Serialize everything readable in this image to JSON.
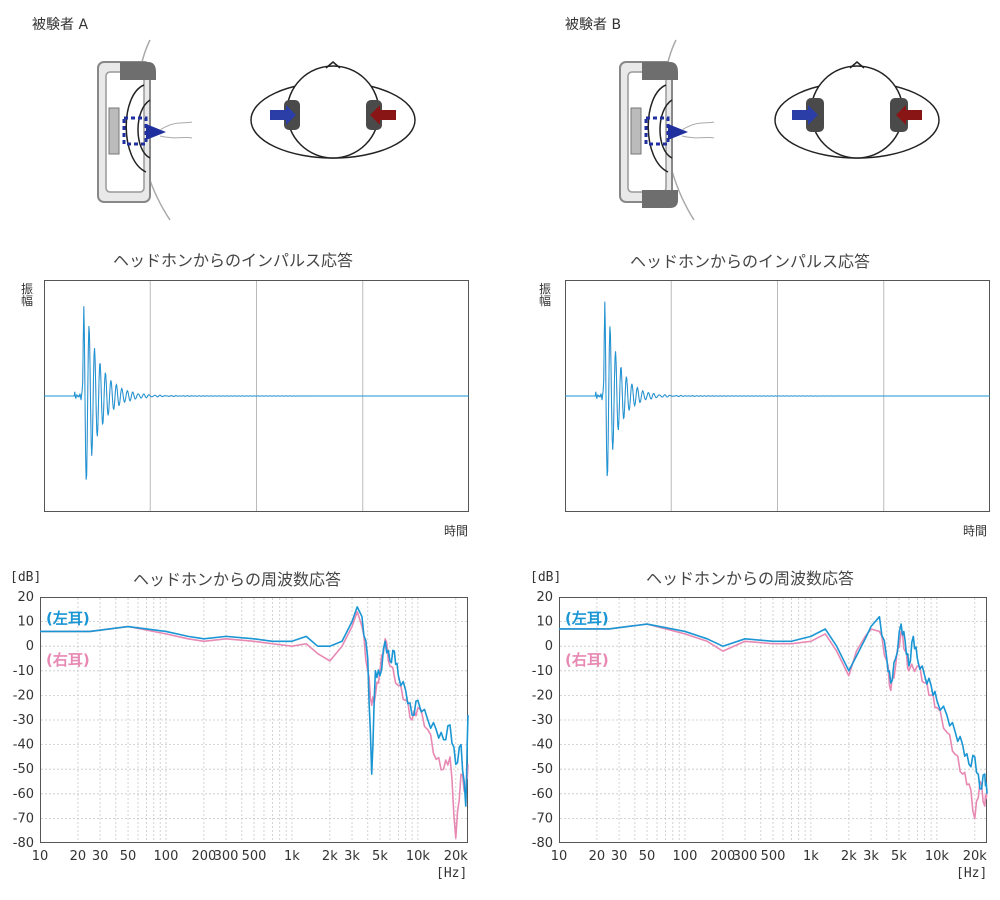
{
  "subjects": [
    {
      "label": "被験者 A",
      "impulse": {
        "title": "ヘッドホンからのインパルス応答",
        "ylabel": "振幅",
        "xlabel": "時間"
      },
      "freq": {
        "title": "ヘッドホンからの周波数応答"
      }
    },
    {
      "label": "被験者 B",
      "impulse": {
        "title": "ヘッドホンからのインパルス応答",
        "ylabel": "振幅",
        "xlabel": "時間"
      },
      "freq": {
        "title": "ヘッドホンからの周波数応答"
      }
    }
  ],
  "colors": {
    "left_ear": "#1a96d4",
    "right_ear": "#e889b4",
    "grid": "#c8c8c8",
    "arrow_blue": "#2b3ea8",
    "arrow_red": "#8a1515"
  },
  "chart_data": [
    {
      "type": "line",
      "title": "ヘッドホンからのインパルス応答",
      "ylabel": "振幅",
      "xlabel": "時間",
      "series": [
        {
          "name": "",
          "envelope": {
            "onset": 0.09,
            "peak_pos": 0.98,
            "peak_neg": -1.0,
            "decay": 0.035
          }
        }
      ]
    },
    {
      "type": "line",
      "title": "ヘッドホンからの周波数応答",
      "yunit": "[dB]",
      "xunit": "[Hz]",
      "xscale": "log",
      "xlim": [
        10,
        25000
      ],
      "ylim": [
        -80,
        20
      ],
      "xticks": [
        10,
        20,
        30,
        50,
        100,
        200,
        300,
        500,
        1000,
        2000,
        3000,
        5000,
        10000,
        20000
      ],
      "xticklabels": [
        "10",
        "20",
        "30",
        "50",
        "100",
        "200",
        "300",
        "500",
        "1k",
        "2k",
        "3k",
        "5k",
        "10k",
        "20k"
      ],
      "yticks": [
        20,
        10,
        0,
        -10,
        -20,
        -30,
        -40,
        -50,
        -60,
        -70,
        -80
      ],
      "yticklabels": [
        "20",
        "10",
        "0",
        "-10",
        "-20",
        "-30",
        "-40",
        "-50",
        "-60",
        "-70",
        "-80"
      ],
      "grid": true,
      "series": [
        {
          "name": "(左耳)",
          "color": "#1a96d4",
          "points": [
            [
              10,
              6
            ],
            [
              25,
              6
            ],
            [
              50,
              8
            ],
            [
              100,
              6
            ],
            [
              150,
              4
            ],
            [
              200,
              3
            ],
            [
              300,
              4
            ],
            [
              500,
              3
            ],
            [
              700,
              2
            ],
            [
              1000,
              2
            ],
            [
              1300,
              4
            ],
            [
              1600,
              0
            ],
            [
              2000,
              0
            ],
            [
              2500,
              2
            ],
            [
              3000,
              10
            ],
            [
              3300,
              16
            ],
            [
              3600,
              12
            ],
            [
              4000,
              -5
            ],
            [
              4300,
              -52
            ],
            [
              4600,
              -10
            ],
            [
              5000,
              -12
            ],
            [
              5500,
              2
            ],
            [
              6000,
              -6
            ],
            [
              6500,
              -2
            ],
            [
              7000,
              -12
            ],
            [
              8000,
              -18
            ],
            [
              9000,
              -28
            ],
            [
              10000,
              -22
            ],
            [
              12000,
              -30
            ],
            [
              14000,
              -34
            ],
            [
              16000,
              -38
            ],
            [
              18000,
              -32
            ],
            [
              20000,
              -48
            ],
            [
              22000,
              -40
            ],
            [
              24000,
              -65
            ],
            [
              25000,
              -28
            ]
          ]
        },
        {
          "name": "(右耳)",
          "color": "#e889b4",
          "points": [
            [
              10,
              6
            ],
            [
              25,
              6
            ],
            [
              50,
              8
            ],
            [
              100,
              5
            ],
            [
              150,
              3
            ],
            [
              200,
              2
            ],
            [
              300,
              3
            ],
            [
              500,
              2
            ],
            [
              700,
              1
            ],
            [
              1000,
              0
            ],
            [
              1300,
              1
            ],
            [
              1600,
              -3
            ],
            [
              2000,
              -6
            ],
            [
              2500,
              0
            ],
            [
              3000,
              8
            ],
            [
              3300,
              14
            ],
            [
              3600,
              8
            ],
            [
              4000,
              -10
            ],
            [
              4300,
              -24
            ],
            [
              4600,
              -20
            ],
            [
              5000,
              -10
            ],
            [
              5500,
              3
            ],
            [
              6000,
              -8
            ],
            [
              7000,
              -16
            ],
            [
              8000,
              -22
            ],
            [
              9000,
              -30
            ],
            [
              10000,
              -25
            ],
            [
              12000,
              -34
            ],
            [
              14000,
              -46
            ],
            [
              16000,
              -50
            ],
            [
              18000,
              -45
            ],
            [
              20000,
              -78
            ],
            [
              22000,
              -52
            ],
            [
              24000,
              -60
            ],
            [
              25000,
              -48
            ]
          ]
        }
      ]
    },
    {
      "type": "line",
      "title": "ヘッドホンからのインパルス応答",
      "ylabel": "振幅",
      "xlabel": "時間",
      "series": [
        {
          "name": "",
          "envelope": {
            "onset": 0.09,
            "peak_pos": 1.05,
            "peak_neg": -1.0,
            "decay": 0.03
          }
        }
      ]
    },
    {
      "type": "line",
      "title": "ヘッドホンからの周波数応答",
      "yunit": "[dB]",
      "xunit": "[Hz]",
      "xscale": "log",
      "xlim": [
        10,
        25000
      ],
      "ylim": [
        -80,
        20
      ],
      "xticks": [
        10,
        20,
        30,
        50,
        100,
        200,
        300,
        500,
        1000,
        2000,
        3000,
        5000,
        10000,
        20000
      ],
      "xticklabels": [
        "10",
        "20",
        "30",
        "50",
        "100",
        "200",
        "300",
        "500",
        "1k",
        "2k",
        "3k",
        "5k",
        "10k",
        "20k"
      ],
      "yticks": [
        20,
        10,
        0,
        -10,
        -20,
        -30,
        -40,
        -50,
        -60,
        -70,
        -80
      ],
      "yticklabels": [
        "20",
        "10",
        "0",
        "-10",
        "-20",
        "-30",
        "-40",
        "-50",
        "-60",
        "-70",
        "-80"
      ],
      "grid": true,
      "series": [
        {
          "name": "(左耳)",
          "color": "#1a96d4",
          "points": [
            [
              10,
              7
            ],
            [
              25,
              7
            ],
            [
              50,
              9
            ],
            [
              100,
              6
            ],
            [
              150,
              3
            ],
            [
              200,
              0
            ],
            [
              300,
              3
            ],
            [
              500,
              2
            ],
            [
              700,
              2
            ],
            [
              1000,
              4
            ],
            [
              1300,
              7
            ],
            [
              1600,
              0
            ],
            [
              2000,
              -10
            ],
            [
              2300,
              -4
            ],
            [
              2700,
              3
            ],
            [
              3000,
              8
            ],
            [
              3500,
              12
            ],
            [
              4000,
              -5
            ],
            [
              4300,
              -15
            ],
            [
              4700,
              -5
            ],
            [
              5200,
              9
            ],
            [
              5600,
              2
            ],
            [
              6000,
              -8
            ],
            [
              6500,
              4
            ],
            [
              7000,
              -5
            ],
            [
              8000,
              -12
            ],
            [
              9000,
              -16
            ],
            [
              10000,
              -22
            ],
            [
              12000,
              -28
            ],
            [
              14000,
              -35
            ],
            [
              16000,
              -40
            ],
            [
              18000,
              -48
            ],
            [
              20000,
              -45
            ],
            [
              22000,
              -58
            ],
            [
              24000,
              -52
            ],
            [
              25000,
              -60
            ]
          ]
        },
        {
          "name": "(右耳)",
          "color": "#e889b4",
          "points": [
            [
              10,
              7
            ],
            [
              25,
              7
            ],
            [
              50,
              9
            ],
            [
              100,
              5
            ],
            [
              150,
              2
            ],
            [
              200,
              -2
            ],
            [
              300,
              2
            ],
            [
              500,
              1
            ],
            [
              700,
              1
            ],
            [
              1000,
              2
            ],
            [
              1300,
              5
            ],
            [
              1600,
              -2
            ],
            [
              2000,
              -12
            ],
            [
              2300,
              -2
            ],
            [
              2700,
              4
            ],
            [
              3000,
              7
            ],
            [
              3500,
              6
            ],
            [
              4000,
              -6
            ],
            [
              4300,
              -18
            ],
            [
              4700,
              -8
            ],
            [
              5200,
              6
            ],
            [
              5600,
              -2
            ],
            [
              6000,
              -10
            ],
            [
              7000,
              -8
            ],
            [
              8000,
              -15
            ],
            [
              9000,
              -20
            ],
            [
              10000,
              -25
            ],
            [
              12000,
              -35
            ],
            [
              14000,
              -44
            ],
            [
              16000,
              -52
            ],
            [
              18000,
              -56
            ],
            [
              20000,
              -70
            ],
            [
              22000,
              -55
            ],
            [
              24000,
              -65
            ],
            [
              25000,
              -58
            ]
          ]
        }
      ]
    }
  ]
}
